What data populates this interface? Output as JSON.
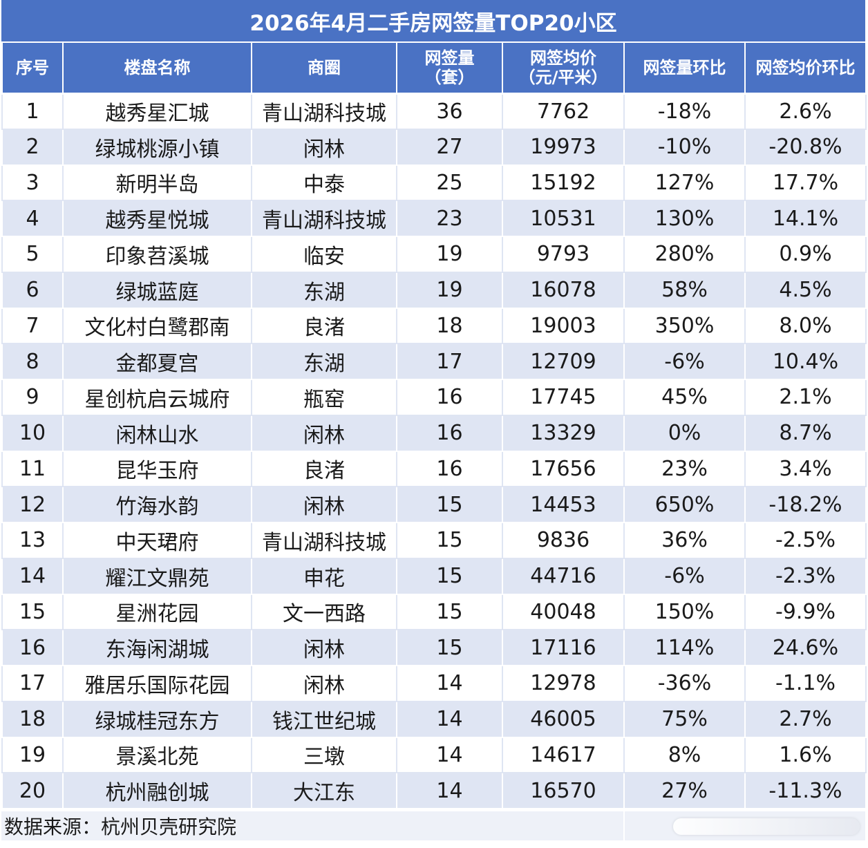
{
  "title": "2026年4月二手房网签量TOP20小区",
  "headers": [
    "序号",
    "楼盘名称",
    "商圈",
    "网签量\n（套）",
    "网签均价\n（元/平米）",
    "网签量环比",
    "网签均价环比"
  ],
  "rows": [
    [
      "1",
      "越秀星汇城",
      "青山湖科技城",
      "36",
      "7762",
      "-18%",
      "2.6%"
    ],
    [
      "2",
      "绿城桃源小镇",
      "闲林",
      "27",
      "19973",
      "-10%",
      "-20.8%"
    ],
    [
      "3",
      "新明半岛",
      "中泰",
      "25",
      "15192",
      "127%",
      "17.7%"
    ],
    [
      "4",
      "越秀星悦城",
      "青山湖科技城",
      "23",
      "10531",
      "130%",
      "14.1%"
    ],
    [
      "5",
      "印象苕溪城",
      "临安",
      "19",
      "9793",
      "280%",
      "0.9%"
    ],
    [
      "6",
      "绿城蓝庭",
      "东湖",
      "19",
      "16078",
      "58%",
      "4.5%"
    ],
    [
      "7",
      "文化村白鹭郡南",
      "良渚",
      "18",
      "19003",
      "350%",
      "8.0%"
    ],
    [
      "8",
      "金都夏宫",
      "东湖",
      "17",
      "12709",
      "-6%",
      "10.4%"
    ],
    [
      "9",
      "星创杭启云城府",
      "瓶窑",
      "16",
      "17745",
      "45%",
      "2.1%"
    ],
    [
      "10",
      "闲林山水",
      "闲林",
      "16",
      "13329",
      "0%",
      "8.7%"
    ],
    [
      "11",
      "昆华玉府",
      "良渚",
      "16",
      "17656",
      "23%",
      "3.4%"
    ],
    [
      "12",
      "竹海水韵",
      "闲林",
      "15",
      "14453",
      "650%",
      "-18.2%"
    ],
    [
      "13",
      "中天珺府",
      "青山湖科技城",
      "15",
      "9836",
      "36%",
      "-2.5%"
    ],
    [
      "14",
      "耀江文鼎苑",
      "申花",
      "15",
      "44716",
      "-6%",
      "-2.3%"
    ],
    [
      "15",
      "星洲花园",
      "文一西路",
      "15",
      "40048",
      "150%",
      "-9.9%"
    ],
    [
      "16",
      "东海闲湖城",
      "闲林",
      "15",
      "17116",
      "114%",
      "24.6%"
    ],
    [
      "17",
      "雅居乐国际花园",
      "闲林",
      "14",
      "12978",
      "-36%",
      "-1.1%"
    ],
    [
      "18",
      "绿城桂冠东方",
      "钱江世纪城",
      "14",
      "46005",
      "75%",
      "2.7%"
    ],
    [
      "19",
      "景溪北苑",
      "三墩",
      "14",
      "14617",
      "8%",
      "1.6%"
    ],
    [
      "20",
      "杭州融创城",
      "大江东",
      "14",
      "16570",
      "27%",
      "-11.3%"
    ]
  ],
  "source": "数据来源：杭州贝壳研究院",
  "colors": {
    "header_bg": "#4a72c4",
    "band": "#dfe5f3"
  }
}
